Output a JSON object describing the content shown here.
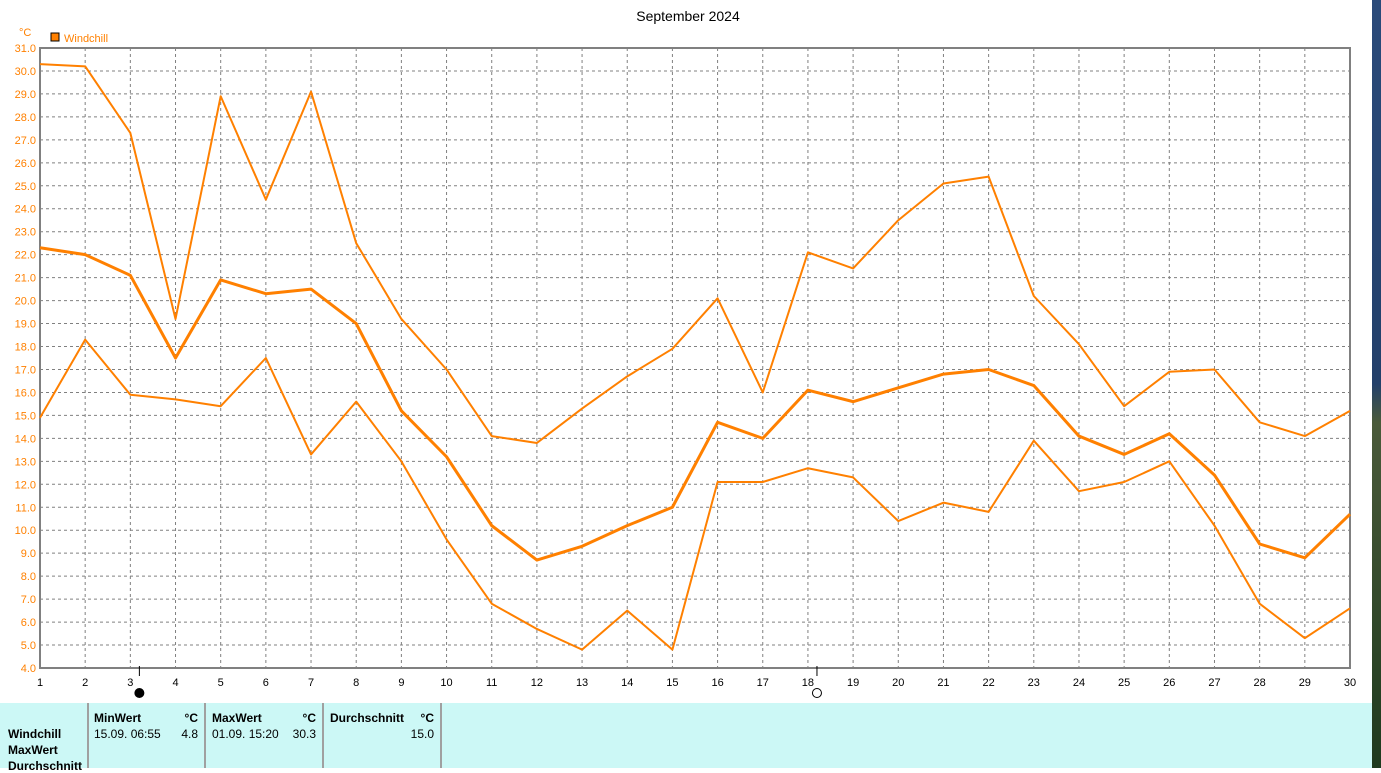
{
  "chart_data": {
    "type": "line",
    "title": "September 2024",
    "ylabel": "°C",
    "legend": [
      {
        "name": "Windchill",
        "color": "#ff8000"
      }
    ],
    "legend_placement": "top-left",
    "grid": true,
    "ylim": [
      4.0,
      31.0
    ],
    "y_ticks": [
      "4.0",
      "5.0",
      "6.0",
      "7.0",
      "8.0",
      "9.0",
      "10.0",
      "11.0",
      "12.0",
      "13.0",
      "14.0",
      "15.0",
      "16.0",
      "17.0",
      "18.0",
      "19.0",
      "20.0",
      "21.0",
      "22.0",
      "23.0",
      "24.0",
      "25.0",
      "26.0",
      "27.0",
      "28.0",
      "29.0",
      "30.0",
      "31.0"
    ],
    "x": [
      1,
      2,
      3,
      4,
      5,
      6,
      7,
      8,
      9,
      10,
      11,
      12,
      13,
      14,
      15,
      16,
      17,
      18,
      19,
      20,
      21,
      22,
      23,
      24,
      25,
      26,
      27,
      28,
      29,
      30
    ],
    "xlim": [
      1,
      30
    ],
    "series": [
      {
        "values": [
          30.3,
          30.2,
          27.3,
          19.2,
          28.9,
          24.4,
          29.1,
          22.5,
          19.2,
          17.0,
          14.1,
          13.8,
          15.3,
          16.7,
          17.9,
          20.1,
          16.0,
          22.1,
          21.4,
          23.5,
          25.1,
          25.4,
          20.2,
          18.1,
          15.4,
          16.9,
          17.0,
          14.7,
          14.1,
          15.2
        ],
        "width": 2
      },
      {
        "values": [
          22.3,
          22.0,
          21.1,
          17.5,
          20.9,
          20.3,
          20.5,
          19.0,
          15.2,
          13.2,
          10.2,
          8.7,
          9.3,
          10.2,
          11.0,
          14.7,
          14.0,
          16.1,
          15.6,
          16.2,
          16.8,
          17.0,
          16.3,
          14.1,
          13.3,
          14.2,
          12.4,
          9.4,
          8.8,
          10.7
        ],
        "width": 3
      },
      {
        "values": [
          14.9,
          18.3,
          15.9,
          15.7,
          15.4,
          17.5,
          13.3,
          15.6,
          13.0,
          9.6,
          6.8,
          5.7,
          4.8,
          6.5,
          4.8,
          12.1,
          12.1,
          12.7,
          12.3,
          10.4,
          11.2,
          10.8,
          13.9,
          11.7,
          12.1,
          13.0,
          10.2,
          6.8,
          5.3,
          6.6
        ],
        "width": 2
      }
    ],
    "moon_phases": [
      {
        "day": 3.2,
        "phase": "new-moon"
      },
      {
        "day": 18.2,
        "phase": "full-moon"
      }
    ],
    "colors": {
      "line": "#ff8000",
      "axis": "#808080",
      "grid": "#808080",
      "text_axis": "#ff8000"
    }
  },
  "stats": {
    "row_labels": [
      "Windchill",
      "MaxWert",
      "Durchschnitt"
    ],
    "min": {
      "header": "MinWert",
      "unit": "°C",
      "date": "15.09.  06:55",
      "value": "4.8"
    },
    "max": {
      "header": "MaxWert",
      "unit": "°C",
      "date": "01.09.  15:20",
      "value": "30.3"
    },
    "avg": {
      "header": "Durchschnitt",
      "unit": "°C",
      "value": "15.0"
    }
  }
}
